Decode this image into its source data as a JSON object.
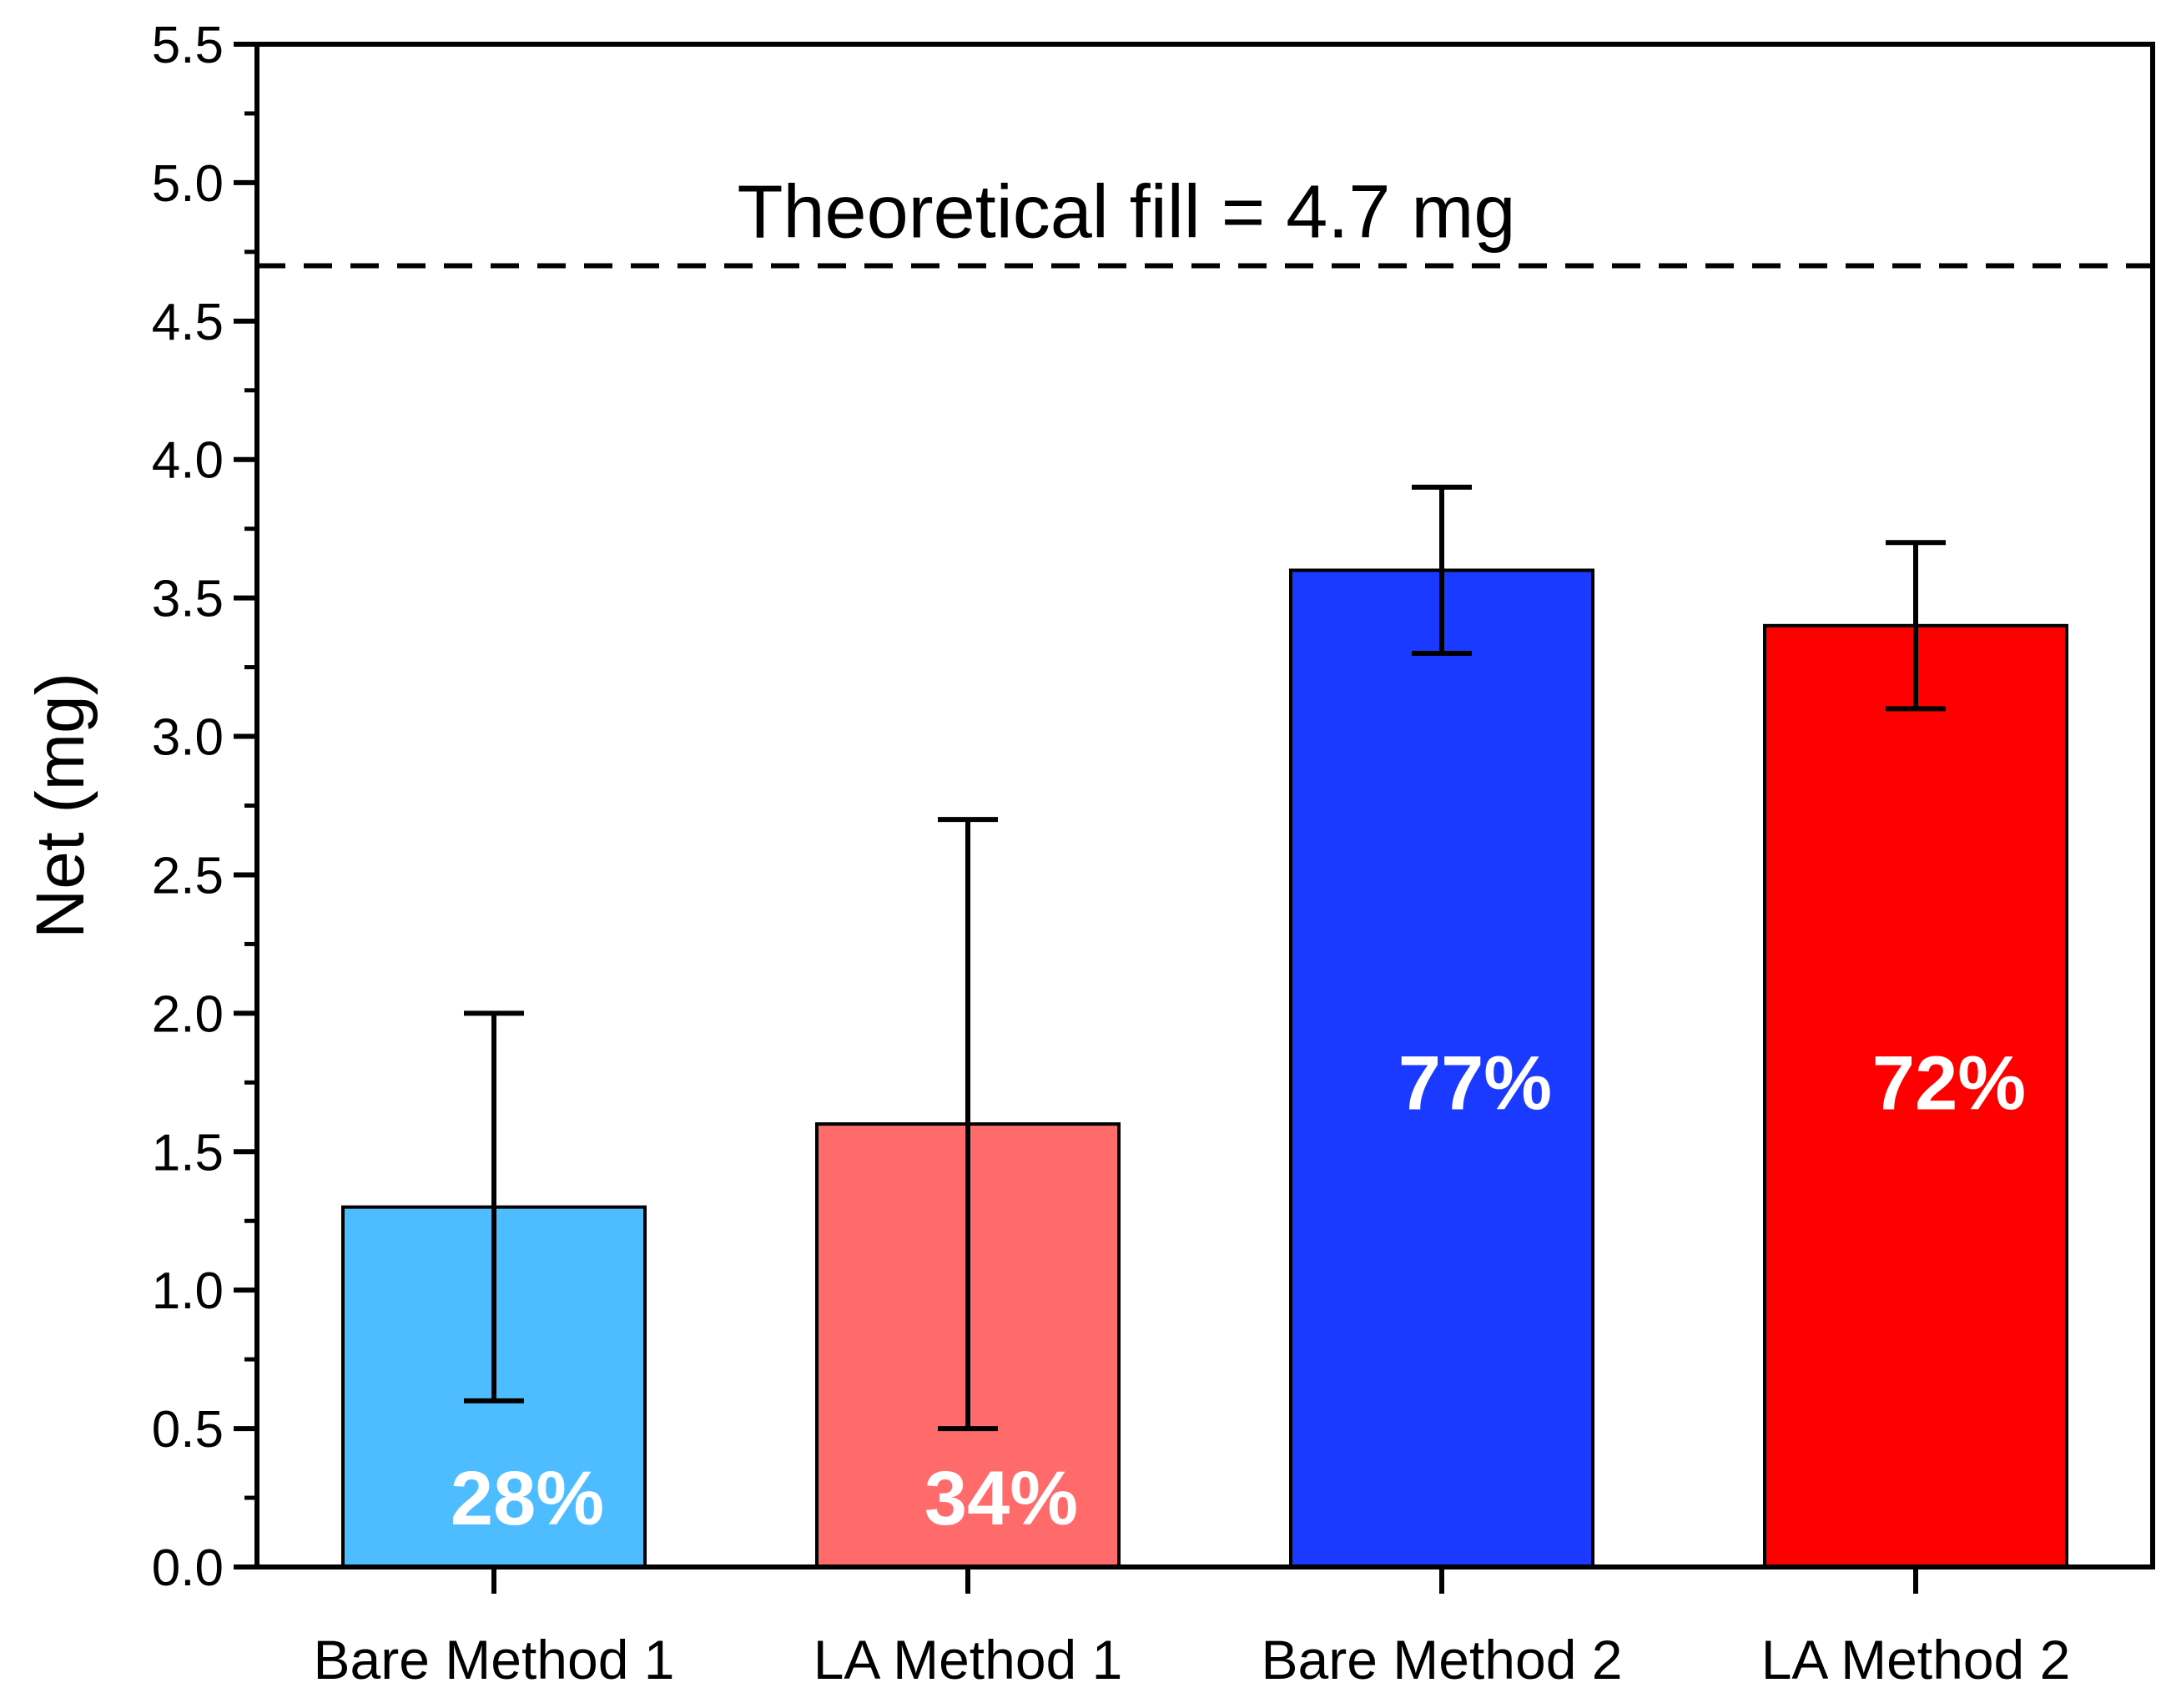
{
  "chart_data": {
    "type": "bar",
    "title": "",
    "xlabel": "",
    "ylabel": "Net (mg)",
    "ylim": [
      0,
      5.5
    ],
    "yticks": [
      "0.0",
      "0.5",
      "1.0",
      "1.5",
      "2.0",
      "2.5",
      "3.0",
      "3.5",
      "4.0",
      "4.5",
      "5.0",
      "5.5"
    ],
    "grid": false,
    "legend": "none",
    "categories": [
      "Bare Method 1",
      "LA Method 1",
      "Bare Method 2",
      "LA Method 2"
    ],
    "values": [
      1.3,
      1.6,
      3.6,
      3.4
    ],
    "error_low": [
      0.6,
      0.5,
      3.3,
      3.1
    ],
    "error_high": [
      2.0,
      2.7,
      3.9,
      3.7
    ],
    "bar_colors": [
      "#4dbdff",
      "#ff6b6b",
      "#1a3bff",
      "#ff0000"
    ],
    "percent_labels": [
      "28%",
      "34%",
      "77%",
      "72%"
    ],
    "percent_label_y": [
      0.25,
      0.25,
      1.75,
      1.75
    ],
    "reference_line": {
      "value": 4.7,
      "style": "dashed",
      "label": "Theoretical fill = 4.7 mg"
    }
  }
}
